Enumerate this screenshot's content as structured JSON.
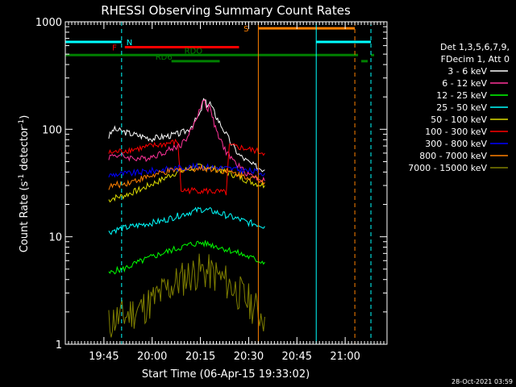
{
  "chart_data": {
    "type": "line",
    "title": "RHESSI Observing Summary Count Rates",
    "xlabel": "Start Time (06-Apr-15 19:33:02)",
    "ylabel_pre": "Count Rate (s",
    "ylabel_sup": "-1",
    "ylabel_post": " detector",
    "ylabel_sup2": "-1",
    "ylabel_end": ")",
    "x_start_min": 0,
    "x_end_min": 100,
    "x_ticks": [
      {
        "label": "19:45",
        "min": 12
      },
      {
        "label": "20:00",
        "min": 27
      },
      {
        "label": "20:15",
        "min": 42
      },
      {
        "label": "20:30",
        "min": 57
      },
      {
        "label": "20:45",
        "min": 72
      },
      {
        "label": "21:00",
        "min": 87
      }
    ],
    "y_scale": "log",
    "ylim": [
      1,
      1000
    ],
    "y_ticks": [
      {
        "label": "1",
        "value": 1
      },
      {
        "label": "10",
        "value": 10
      },
      {
        "label": "100",
        "value": 100
      },
      {
        "label": "1000",
        "value": 1000
      }
    ],
    "legend_header": [
      "Det 1,3,5,6,7,9,",
      "FDecim 1, Att 0"
    ],
    "series": [
      {
        "name": "3 - 6 keV",
        "color": "#ffffff",
        "points": [
          [
            13.5,
            85
          ],
          [
            15,
            100
          ],
          [
            18,
            95
          ],
          [
            21,
            90
          ],
          [
            24,
            86
          ],
          [
            27,
            82
          ],
          [
            30,
            85
          ],
          [
            33,
            88
          ],
          [
            36,
            92
          ],
          [
            38,
            98
          ],
          [
            40,
            115
          ],
          [
            42,
            140
          ],
          [
            43,
            190
          ],
          [
            44,
            170
          ],
          [
            45,
            175
          ],
          [
            46,
            150
          ],
          [
            47,
            130
          ],
          [
            48,
            115
          ],
          [
            50,
            90
          ],
          [
            52,
            70
          ],
          [
            54,
            58
          ],
          [
            56,
            52
          ],
          [
            58,
            47
          ],
          [
            60,
            44
          ],
          [
            62,
            42
          ]
        ]
      },
      {
        "name": "6 - 12 keV",
        "color": "#ff3399",
        "points": [
          [
            13.5,
            55
          ],
          [
            15,
            58
          ],
          [
            18,
            56
          ],
          [
            21,
            54
          ],
          [
            24,
            53
          ],
          [
            27,
            56
          ],
          [
            30,
            60
          ],
          [
            33,
            66
          ],
          [
            36,
            72
          ],
          [
            38,
            85
          ],
          [
            40,
            110
          ],
          [
            42,
            160
          ],
          [
            43,
            195
          ],
          [
            44,
            150
          ],
          [
            45,
            170
          ],
          [
            46,
            120
          ],
          [
            47,
            95
          ],
          [
            48,
            80
          ],
          [
            50,
            62
          ],
          [
            52,
            52
          ],
          [
            54,
            45
          ],
          [
            56,
            40
          ],
          [
            58,
            37
          ],
          [
            60,
            35
          ],
          [
            62,
            33
          ]
        ]
      },
      {
        "name": "12 - 25 keV",
        "color": "#00ff00",
        "points": [
          [
            13.5,
            4.5
          ],
          [
            15,
            4.8
          ],
          [
            18,
            5.0
          ],
          [
            21,
            5.5
          ],
          [
            24,
            6.0
          ],
          [
            27,
            6.5
          ],
          [
            30,
            7.0
          ],
          [
            33,
            7.5
          ],
          [
            36,
            8.0
          ],
          [
            39,
            8.5
          ],
          [
            42,
            8.8
          ],
          [
            45,
            8.5
          ],
          [
            48,
            8.0
          ],
          [
            51,
            7.5
          ],
          [
            54,
            7.0
          ],
          [
            57,
            6.5
          ],
          [
            60,
            6.0
          ],
          [
            62,
            5.8
          ]
        ]
      },
      {
        "name": "25 - 50 keV",
        "color": "#00ffff",
        "points": [
          [
            13.5,
            11
          ],
          [
            15,
            11.5
          ],
          [
            18,
            12
          ],
          [
            21,
            12.5
          ],
          [
            24,
            13
          ],
          [
            27,
            13.5
          ],
          [
            30,
            14
          ],
          [
            33,
            15
          ],
          [
            36,
            16
          ],
          [
            39,
            17
          ],
          [
            42,
            18
          ],
          [
            45,
            17.5
          ],
          [
            48,
            16.5
          ],
          [
            51,
            15.5
          ],
          [
            54,
            14.5
          ],
          [
            57,
            13.5
          ],
          [
            60,
            13
          ],
          [
            62,
            12.5
          ]
        ]
      },
      {
        "name": "50 - 100 keV",
        "color": "#dddd00",
        "points": [
          [
            13.5,
            22
          ],
          [
            15,
            23
          ],
          [
            18,
            24
          ],
          [
            21,
            26
          ],
          [
            24,
            28
          ],
          [
            27,
            31
          ],
          [
            30,
            34
          ],
          [
            33,
            38
          ],
          [
            36,
            41
          ],
          [
            39,
            43
          ],
          [
            42,
            45
          ],
          [
            45,
            44
          ],
          [
            48,
            42
          ],
          [
            51,
            39
          ],
          [
            54,
            36
          ],
          [
            57,
            33
          ],
          [
            60,
            31
          ],
          [
            62,
            30
          ]
        ]
      },
      {
        "name": "100 - 300 keV",
        "color": "#ff0000",
        "points": [
          [
            13.5,
            60
          ],
          [
            15,
            61
          ],
          [
            18,
            63
          ],
          [
            21,
            65
          ],
          [
            24,
            67
          ],
          [
            27,
            70
          ],
          [
            30,
            72
          ],
          [
            33,
            75
          ],
          [
            35,
            76
          ],
          [
            36,
            27
          ],
          [
            39,
            27
          ],
          [
            42,
            27
          ],
          [
            45,
            26.5
          ],
          [
            48,
            26
          ],
          [
            50,
            25.5
          ],
          [
            51,
            70
          ],
          [
            54,
            68
          ],
          [
            57,
            65
          ],
          [
            60,
            62
          ],
          [
            62,
            60
          ]
        ]
      },
      {
        "name": "300 - 800 keV",
        "color": "#0000ff",
        "points": [
          [
            13.5,
            37
          ],
          [
            15,
            38
          ],
          [
            18,
            38.5
          ],
          [
            21,
            39
          ],
          [
            24,
            40
          ],
          [
            27,
            41
          ],
          [
            30,
            42
          ],
          [
            33,
            43
          ],
          [
            36,
            44
          ],
          [
            39,
            44.5
          ],
          [
            42,
            45
          ],
          [
            45,
            44.5
          ],
          [
            48,
            44
          ],
          [
            51,
            43
          ],
          [
            54,
            42
          ],
          [
            57,
            41
          ],
          [
            60,
            40
          ],
          [
            62,
            39
          ]
        ]
      },
      {
        "name": "800 - 7000 keV",
        "color": "#ff8000",
        "points": [
          [
            13.5,
            29
          ],
          [
            15,
            30
          ],
          [
            18,
            31
          ],
          [
            21,
            33
          ],
          [
            24,
            35
          ],
          [
            27,
            37
          ],
          [
            30,
            39
          ],
          [
            33,
            41
          ],
          [
            36,
            42
          ],
          [
            39,
            43
          ],
          [
            42,
            43.5
          ],
          [
            45,
            43
          ],
          [
            48,
            42
          ],
          [
            51,
            40
          ],
          [
            54,
            38
          ],
          [
            57,
            36
          ],
          [
            60,
            34
          ],
          [
            62,
            32
          ]
        ]
      },
      {
        "name": "7000 - 15000 keV",
        "color": "#808000",
        "points": [
          [
            13.5,
            1.5
          ],
          [
            15,
            1.7
          ],
          [
            18,
            1.8
          ],
          [
            21,
            2.0
          ],
          [
            24,
            2.2
          ],
          [
            27,
            2.5
          ],
          [
            30,
            3.0
          ],
          [
            33,
            3.5
          ],
          [
            36,
            4.0
          ],
          [
            39,
            4.5
          ],
          [
            42,
            4.8
          ],
          [
            45,
            4.6
          ],
          [
            48,
            4.2
          ],
          [
            51,
            3.6
          ],
          [
            54,
            3.0
          ],
          [
            57,
            2.5
          ],
          [
            60,
            2.0
          ],
          [
            62,
            1.8
          ]
        ]
      }
    ],
    "vertical_lines": [
      {
        "min": 0,
        "color": "#00ffff",
        "style": "solid"
      },
      {
        "min": 17.5,
        "color": "#00ffff",
        "style": "dashed"
      },
      {
        "min": 60,
        "color": "#ff8000",
        "style": "solid"
      },
      {
        "min": 78,
        "color": "#00ffff",
        "style": "solid"
      },
      {
        "min": 90,
        "color": "#ff8000",
        "style": "dashed"
      },
      {
        "min": 95,
        "color": "#00ffff",
        "style": "dashed"
      }
    ],
    "flag_bars": [
      {
        "label": "N",
        "color": "#00ffff",
        "y_value": 650,
        "segments": [
          [
            0,
            17.5
          ],
          [
            78,
            95
          ]
        ],
        "label_min": 19
      },
      {
        "label": "S",
        "color": "#ff8000",
        "y_value": 870,
        "segments": [
          [
            60,
            90
          ]
        ],
        "label_min": 57
      },
      {
        "label": "F",
        "color": "#ff0000",
        "y_value": 580,
        "segments": [
          [
            18.5,
            54
          ]
        ],
        "label_min": 16
      },
      {
        "label": "RDO",
        "color": "#008000",
        "y_value": 490,
        "segments": [
          [
            0,
            91
          ],
          [
            95,
            96
          ]
        ],
        "label_min": 37
      },
      {
        "label": "RD6",
        "color": "#008000",
        "y_value": 430,
        "segments": [
          [
            33,
            48
          ],
          [
            92,
            94
          ]
        ],
        "label_min": 28
      }
    ]
  },
  "footer": {
    "date_stamp": "28-Oct-2021 03:59"
  }
}
